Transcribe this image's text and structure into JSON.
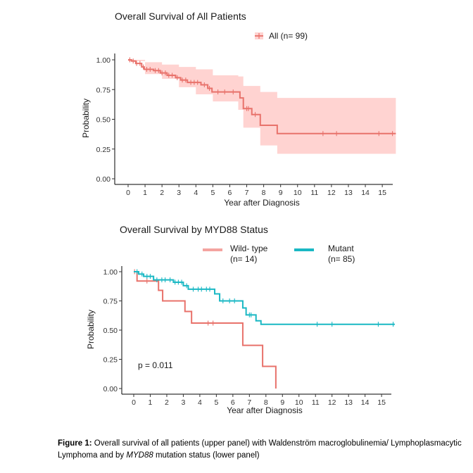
{
  "chart_data": [
    {
      "type": "line",
      "subtype": "kaplan-meier",
      "title": "Overall Survival of All Patients",
      "xlabel": "Year after Diagnosis",
      "ylabel": "Probability",
      "xlim": [
        0,
        16
      ],
      "ylim": [
        0,
        1
      ],
      "xticks": [
        "0",
        "1",
        "2",
        "3",
        "4",
        "5",
        "6",
        "7",
        "8",
        "9",
        "10",
        "11",
        "12",
        "13",
        "14",
        "15"
      ],
      "yticks": [
        "0.00",
        "0.25",
        "0.50",
        "0.75",
        "1.00"
      ],
      "legend": {
        "position": "top",
        "entries": [
          "All (n= 99)"
        ]
      },
      "series": [
        {
          "name": "All (n= 99)",
          "color": "#e8726b",
          "ci_color": "#ffd3d1",
          "steps": [
            [
              0,
              1.0
            ],
            [
              0.2,
              0.99
            ],
            [
              0.45,
              0.97
            ],
            [
              0.8,
              0.94
            ],
            [
              0.95,
              0.92
            ],
            [
              1.5,
              0.91
            ],
            [
              1.9,
              0.89
            ],
            [
              2.3,
              0.87
            ],
            [
              2.8,
              0.85
            ],
            [
              3.1,
              0.83
            ],
            [
              3.5,
              0.81
            ],
            [
              4.3,
              0.79
            ],
            [
              4.7,
              0.76
            ],
            [
              4.95,
              0.73
            ],
            [
              6.6,
              0.68
            ],
            [
              6.8,
              0.59
            ],
            [
              7.3,
              0.54
            ],
            [
              7.8,
              0.45
            ],
            [
              8.8,
              0.38
            ],
            [
              15.8,
              0.38
            ]
          ],
          "ci_upper": [
            [
              0,
              1.0
            ],
            [
              1.0,
              0.98
            ],
            [
              2.0,
              0.96
            ],
            [
              3.0,
              0.94
            ],
            [
              4.0,
              0.92
            ],
            [
              5.0,
              0.87
            ],
            [
              6.5,
              0.86
            ],
            [
              6.8,
              0.78
            ],
            [
              7.8,
              0.73
            ],
            [
              8.8,
              0.68
            ],
            [
              15.8,
              0.68
            ]
          ],
          "ci_lower": [
            [
              0,
              0.99
            ],
            [
              1.0,
              0.88
            ],
            [
              2.0,
              0.84
            ],
            [
              3.0,
              0.77
            ],
            [
              4.0,
              0.71
            ],
            [
              5.0,
              0.65
            ],
            [
              6.5,
              0.58
            ],
            [
              6.8,
              0.43
            ],
            [
              7.8,
              0.28
            ],
            [
              8.8,
              0.21
            ],
            [
              15.8,
              0.21
            ]
          ],
          "censor_x": [
            0.1,
            0.3,
            0.5,
            0.7,
            0.9,
            1.1,
            1.3,
            1.6,
            1.8,
            2.0,
            2.2,
            2.4,
            2.6,
            2.9,
            3.2,
            3.4,
            3.7,
            3.9,
            4.1,
            4.5,
            4.8,
            5.3,
            5.7,
            6.2,
            7.0,
            7.1,
            7.5,
            11.5,
            12.3,
            14.8,
            15.6
          ]
        }
      ]
    },
    {
      "type": "line",
      "subtype": "kaplan-meier",
      "title": "Overall Survival by MYD88 Status",
      "xlabel": "Year after Diagnosis",
      "ylabel": "Probability",
      "xlim": [
        0,
        16
      ],
      "ylim": [
        0,
        1
      ],
      "xticks": [
        "0",
        "1",
        "2",
        "3",
        "4",
        "5",
        "6",
        "7",
        "8",
        "9",
        "10",
        "11",
        "12",
        "13",
        "14",
        "15"
      ],
      "yticks": [
        "0.00",
        "0.25",
        "0.50",
        "0.75",
        "1.00"
      ],
      "legend": {
        "position": "top",
        "entries": [
          "Wild- type (n= 14)",
          "Mutant (n= 85)"
        ]
      },
      "annotation": "p = 0.011",
      "series": [
        {
          "name": "Wild- type",
          "count_label": "(n= 14)",
          "color": "#e8726b",
          "steps": [
            [
              0,
              1.0
            ],
            [
              0.2,
              0.92
            ],
            [
              1.5,
              0.84
            ],
            [
              1.75,
              0.75
            ],
            [
              3.1,
              0.66
            ],
            [
              3.5,
              0.56
            ],
            [
              6.6,
              0.37
            ],
            [
              7.8,
              0.19
            ],
            [
              8.6,
              0.0
            ]
          ],
          "censor_x": [
            0.05,
            0.8,
            4.5,
            4.8
          ]
        },
        {
          "name": "Mutant",
          "count_label": "(n= 85)",
          "color": "#1ab8c4",
          "steps": [
            [
              0,
              1.0
            ],
            [
              0.3,
              0.98
            ],
            [
              0.6,
              0.96
            ],
            [
              1.2,
              0.93
            ],
            [
              2.4,
              0.91
            ],
            [
              3.0,
              0.88
            ],
            [
              3.3,
              0.85
            ],
            [
              4.9,
              0.81
            ],
            [
              5.2,
              0.75
            ],
            [
              6.6,
              0.69
            ],
            [
              6.8,
              0.63
            ],
            [
              7.4,
              0.58
            ],
            [
              7.7,
              0.55
            ],
            [
              15.8,
              0.55
            ]
          ],
          "censor_x": [
            0.2,
            0.5,
            0.8,
            1.0,
            1.4,
            1.7,
            1.9,
            2.2,
            2.5,
            2.7,
            2.9,
            3.2,
            3.6,
            3.9,
            4.1,
            4.4,
            4.6,
            5.4,
            5.8,
            6.1,
            7.0,
            7.1,
            11.1,
            12.0,
            14.8,
            15.7
          ]
        }
      ]
    }
  ],
  "caption": {
    "label": "Figure 1:",
    "part1": " Overall survival of all patients (upper panel) with Waldenström macroglobulinemia/ Lymphoplasmacytic Lymphoma and by ",
    "gene": "MYD88",
    "part2": " mutation status (lower panel)"
  }
}
